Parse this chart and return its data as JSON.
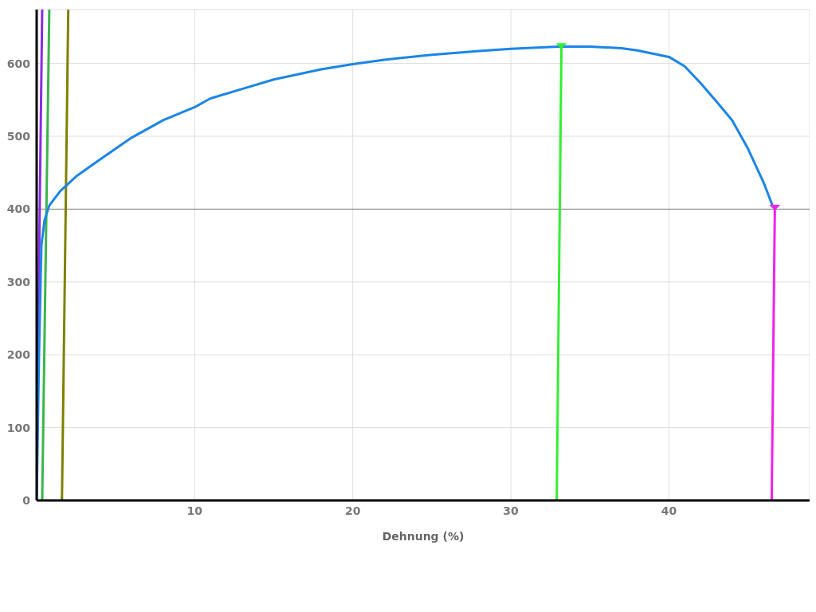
{
  "chart_data": {
    "type": "line",
    "xlabel": "Dehnung (%)",
    "xlim": [
      0,
      48.9
    ],
    "xticks": [
      10,
      20,
      30,
      40
    ],
    "ylim": [
      0,
      674
    ],
    "yticks": [
      0,
      100,
      200,
      300,
      400,
      500,
      600
    ],
    "grid": true,
    "legend": false,
    "marker": "none",
    "line_style": "solid",
    "ref_lines": [
      {
        "axis": "y",
        "value": 400,
        "color": "#777777"
      }
    ],
    "series": [
      {
        "color": "#8a2be2",
        "x": [
          0.05,
          0.35
        ],
        "values": [
          150,
          674
        ]
      },
      {
        "color": "#3cb44b",
        "x": [
          0.35,
          0.8
        ],
        "values": [
          0,
          674
        ]
      },
      {
        "color": "#808000",
        "x": [
          1.6,
          2.0
        ],
        "values": [
          0,
          674
        ]
      },
      {
        "color": "#1a85e8",
        "x": [
          0,
          0.15,
          0.3,
          0.5,
          0.8,
          1.5,
          2.5,
          4,
          6,
          8,
          10,
          11,
          13,
          15,
          18,
          20,
          22,
          25,
          28,
          30,
          33,
          35,
          37,
          38,
          40,
          41,
          42,
          43,
          44,
          45,
          46,
          46.6
        ],
        "values": [
          0,
          200,
          350,
          385,
          405,
          425,
          445,
          468,
          498,
          522,
          540,
          552,
          565,
          578,
          592,
          599,
          605,
          612,
          617,
          620,
          623,
          623,
          621,
          618,
          609,
          596,
          573,
          548,
          522,
          483,
          436,
          402
        ]
      },
      {
        "color": "#33ee33",
        "x": [
          32.9,
          33.2
        ],
        "values": [
          0,
          624
        ]
      },
      {
        "color": "#ee22ee",
        "x": [
          46.5,
          46.7
        ],
        "values": [
          0,
          402
        ]
      },
      {
        "type": "scatter",
        "color": "#33ee33",
        "marker": "triangle",
        "x": [
          33.2
        ],
        "values": [
          624
        ]
      },
      {
        "type": "scatter",
        "color": "#ee22ee",
        "marker": "triangle",
        "x": [
          46.7
        ],
        "values": [
          402
        ]
      }
    ]
  }
}
